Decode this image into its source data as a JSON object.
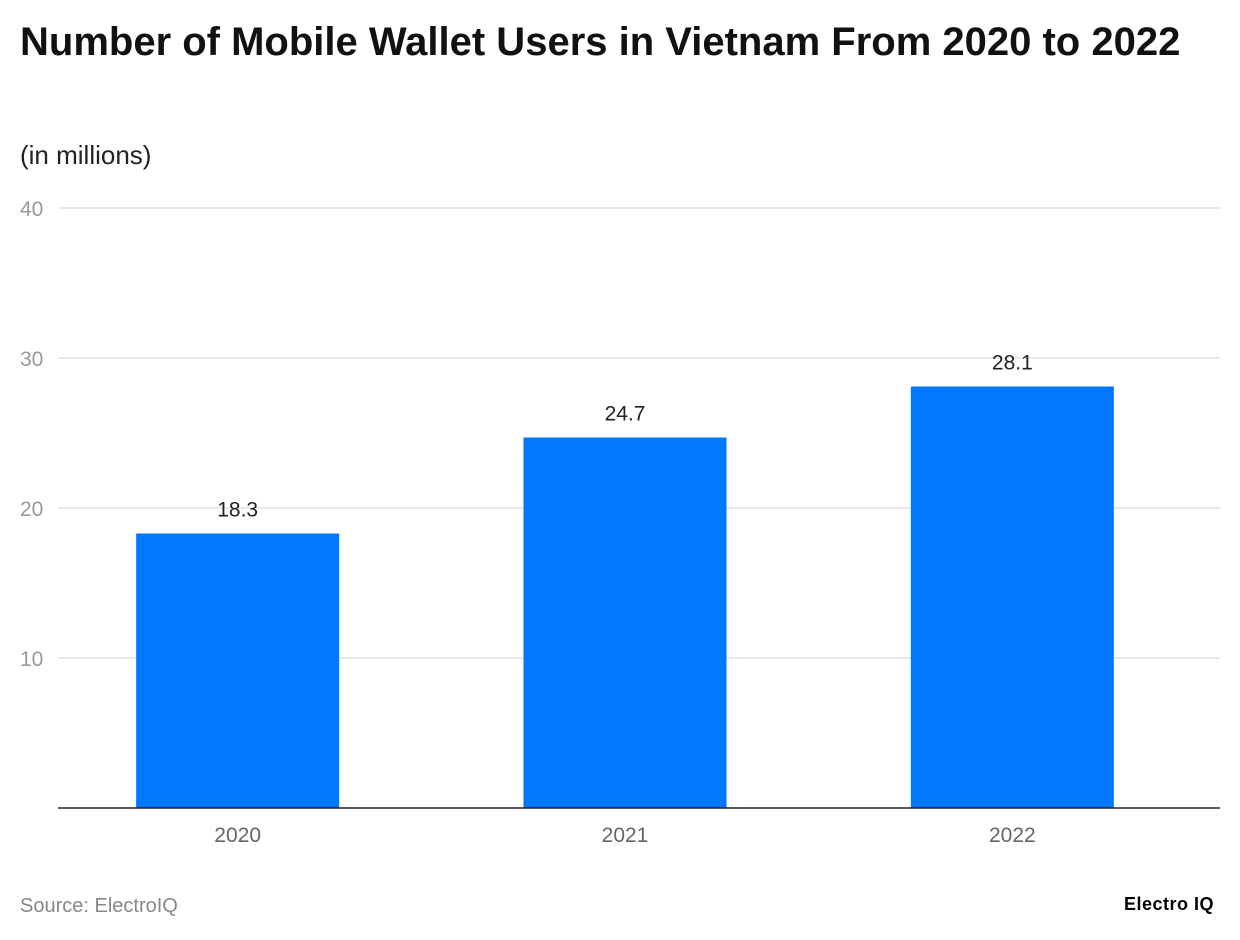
{
  "chart_data": {
    "type": "bar",
    "title": "Number of Mobile Wallet Users in Vietnam From 2020 to 2022",
    "subtitle": "(in millions)",
    "categories": [
      "2020",
      "2021",
      "2022"
    ],
    "values": [
      18.3,
      24.7,
      28.1
    ],
    "data_labels": [
      "18.3",
      "24.7",
      "28.1"
    ],
    "yticks": [
      10,
      20,
      30,
      40
    ],
    "ylim": [
      0,
      40
    ],
    "grid": true,
    "bar_color": "#0077FF",
    "source": "Source: ElectroIQ"
  },
  "logo": "Electro IQ"
}
